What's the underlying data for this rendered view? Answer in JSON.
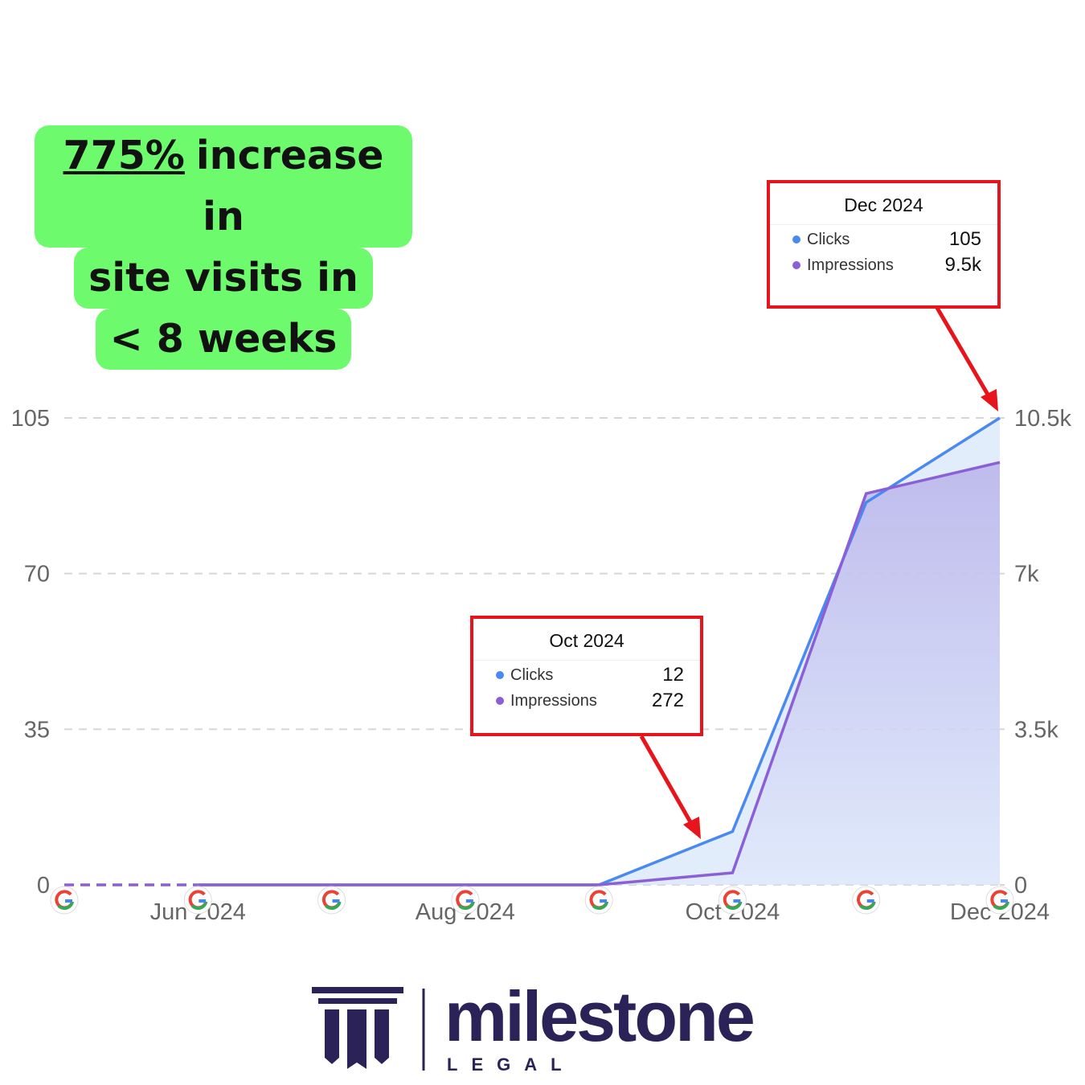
{
  "headline": {
    "highlight": "775%",
    "lines": [
      "increase in",
      "site visits in",
      "< 8 weeks"
    ]
  },
  "chart_data": {
    "type": "line",
    "categories": [
      null,
      "Jun 2024",
      null,
      "Aug 2024",
      null,
      "Oct 2024",
      null,
      "Dec 2024"
    ],
    "series": [
      {
        "name": "Clicks",
        "color": "#4a8af0",
        "values": [
          0,
          0,
          0,
          0,
          0,
          12,
          86,
          105
        ]
      },
      {
        "name": "Impressions",
        "color": "#8b5fd6",
        "axis": "y2",
        "values": [
          0,
          0,
          0,
          0,
          0,
          272,
          8800,
          9500
        ]
      }
    ],
    "ylim": [
      0,
      105
    ],
    "yticks": [
      0,
      35,
      70,
      105
    ],
    "y2lim": [
      0,
      10500
    ],
    "y2ticks": [
      0,
      {
        "value": 3500,
        "label": "3.5k"
      },
      {
        "value": 7000,
        "label": "7k"
      },
      {
        "value": 10500,
        "label": "10.5k"
      }
    ],
    "grid": true,
    "tooltips": [
      {
        "title": "Oct 2024",
        "rows": [
          {
            "name": "Clicks",
            "value": 12
          },
          {
            "name": "Impressions",
            "value": 272
          }
        ]
      },
      {
        "title": "Dec 2024",
        "rows": [
          {
            "name": "Clicks",
            "value": 105
          },
          {
            "name": "Impressions",
            "value": 9500,
            "label": "9.5k"
          }
        ]
      }
    ]
  },
  "logo": {
    "name": "milestone",
    "sub": "LEGAL"
  }
}
